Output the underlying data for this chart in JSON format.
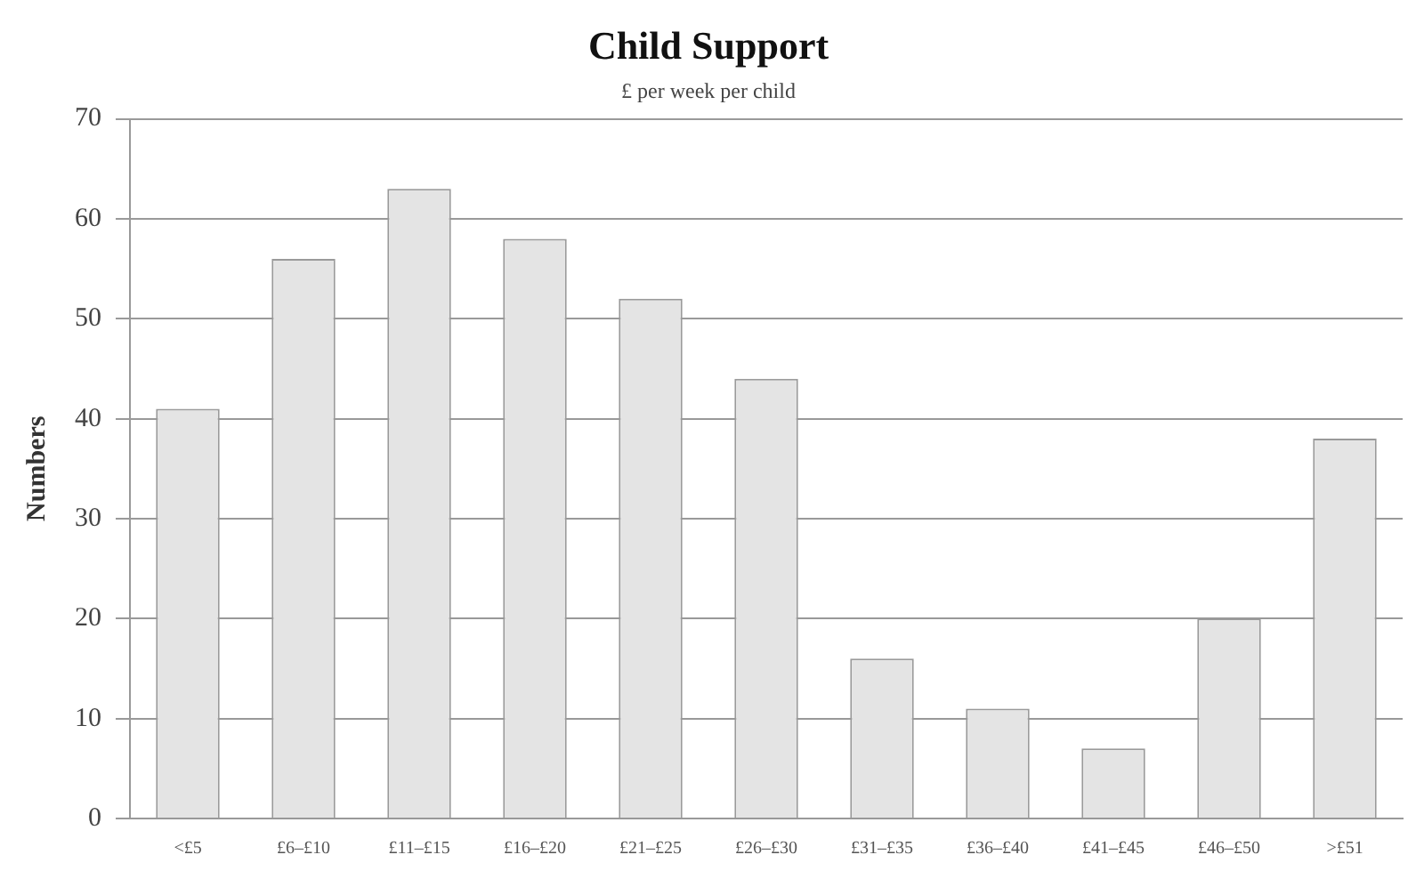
{
  "chart_data": {
    "type": "bar",
    "title": "Child Support",
    "subtitle": "£ per week per child",
    "ylabel": "Numbers",
    "categories": [
      "<£5",
      "£6–£10",
      "£11–£15",
      "£16–£20",
      "£21–£25",
      "£26–£30",
      "£31–£35",
      "£36–£40",
      "£41–£45",
      "£46–£50",
      ">£51"
    ],
    "values": [
      41,
      56,
      63,
      58,
      52,
      44,
      16,
      11,
      7,
      20,
      38
    ],
    "color": "#e4e4e4",
    "ylim": [
      0,
      70
    ],
    "yticks": [
      0,
      10,
      20,
      30,
      40,
      50,
      60,
      70
    ],
    "grid": "y"
  }
}
